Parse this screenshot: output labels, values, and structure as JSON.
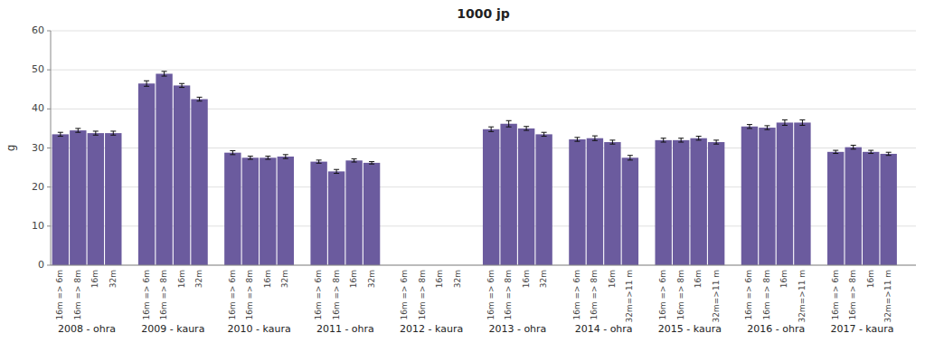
{
  "chart_data": {
    "type": "bar",
    "title": "1000 jp",
    "ylabel": "g",
    "color": "#6B5B9E",
    "ylim": [
      0,
      60
    ],
    "yticks": [
      0,
      10,
      20,
      30,
      40,
      50,
      60
    ],
    "grid": true,
    "group_labels": [
      "2008 - ohra",
      "2009 - kaura",
      "2010 - kaura",
      "2011 - ohra",
      "2012 - kaura",
      "2013 - ohra",
      "2014 - ohra",
      "2015 - kaura",
      "2016 - ohra",
      "2017 - kaura"
    ],
    "categories": [
      "16m => 6m",
      "16m => 8m",
      "16m",
      "32m",
      "16m => 6m",
      "16m => 8m",
      "16m",
      "32m",
      "16m => 6m",
      "16m => 8m",
      "16m",
      "32m",
      "16m => 6m",
      "16m => 8m",
      "16m",
      "32m",
      "16m => 6m",
      "16m => 8m",
      "16m",
      "32m",
      "16m => 6m",
      "16m => 8m",
      "16m",
      "32m",
      "16m => 6m",
      "16m => 8m",
      "16m",
      "32m=>11 m",
      "16m => 6m",
      "16m => 8m",
      "16m",
      "32m=>11 m",
      "16m => 6m",
      "16m => 8m",
      "16m",
      "32m=>11 m",
      "16m => 6m",
      "16m => 8m",
      "16m",
      "32m=>11 m"
    ],
    "values": [
      33.5,
      34.5,
      33.8,
      33.8,
      46.5,
      49.0,
      46.0,
      42.5,
      28.8,
      27.5,
      27.5,
      27.8,
      26.5,
      24.0,
      26.8,
      26.2,
      null,
      null,
      null,
      null,
      34.8,
      36.2,
      35.0,
      33.5,
      32.2,
      32.5,
      31.5,
      27.5,
      32.0,
      32.0,
      32.5,
      31.5,
      35.5,
      35.2,
      36.5,
      36.5,
      29.0,
      30.2,
      29.0,
      28.5
    ],
    "errors": [
      0.5,
      0.5,
      0.5,
      0.5,
      0.7,
      0.6,
      0.5,
      0.5,
      0.5,
      0.4,
      0.4,
      0.5,
      0.4,
      0.5,
      0.4,
      0.3,
      null,
      null,
      null,
      null,
      0.6,
      0.8,
      0.5,
      0.5,
      0.5,
      0.6,
      0.5,
      0.6,
      0.5,
      0.5,
      0.5,
      0.5,
      0.5,
      0.5,
      0.7,
      0.7,
      0.4,
      0.5,
      0.4,
      0.4
    ]
  }
}
